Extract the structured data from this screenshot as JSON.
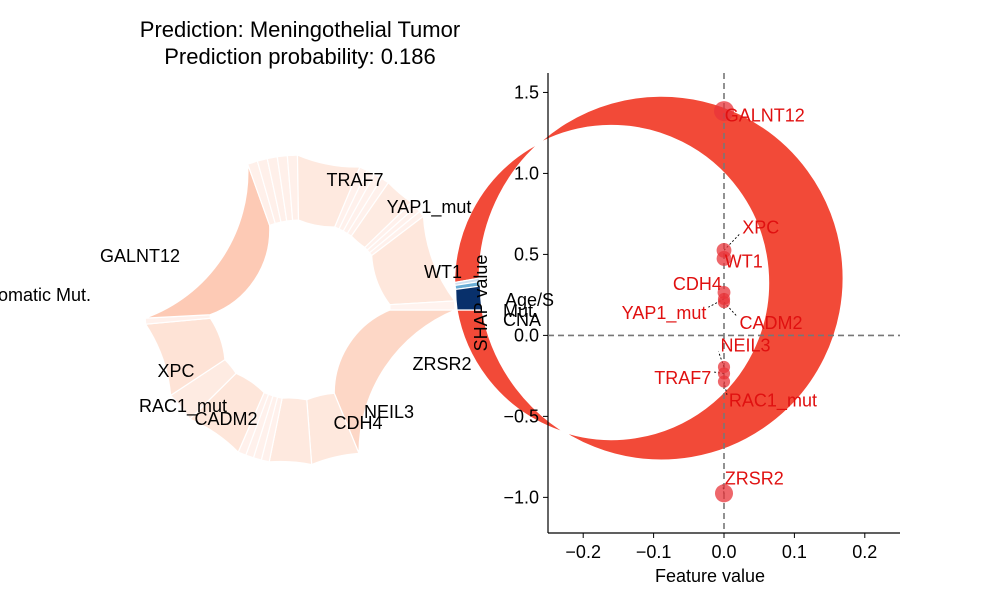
{
  "chart_data": [
    {
      "type": "donut",
      "title_lines": [
        "Prediction: Meningothelial Tumor",
        "Prediction probability: 0.186"
      ],
      "outer_ring": [
        {
          "name": "Somatic Mut.",
          "value": 0.972,
          "color": "#f24a38"
        },
        {
          "name": "Age/Sex",
          "value": 0.003,
          "color": "#cfdff0"
        },
        {
          "name": "Mut. Burden",
          "value": 0.004,
          "color": "#6baed6"
        },
        {
          "name": "CNA",
          "value": 0.021,
          "color": "#08306b"
        }
      ],
      "outer_labels": [
        {
          "text": "omatic Mut."
        },
        {
          "text": "Age/S"
        },
        {
          "text": "Mut."
        },
        {
          "text": "CNA"
        }
      ],
      "inner_ring": [
        {
          "name": "ZRSR2",
          "value": 0.18,
          "color": "#fdd7c6",
          "label": "ZRSR2"
        },
        {
          "name": "NEIL3",
          "value": 0.048,
          "color": "#fee8dd",
          "label": "NEIL3"
        },
        {
          "name": "CDH4",
          "value": 0.042,
          "color": "#fee9df",
          "label": "CDH4"
        },
        {
          "name": "s_a1",
          "value": 0.008,
          "color": "#fff1ec",
          "label": ""
        },
        {
          "name": "s_a2",
          "value": 0.008,
          "color": "#fff1ec",
          "label": ""
        },
        {
          "name": "s_a3",
          "value": 0.008,
          "color": "#fff1ec",
          "label": ""
        },
        {
          "name": "s_a4",
          "value": 0.008,
          "color": "#fff1ec",
          "label": ""
        },
        {
          "name": "CADM2",
          "value": 0.058,
          "color": "#fee6da",
          "label": "CADM2"
        },
        {
          "name": "RAC1_mut",
          "value": 0.03,
          "color": "#feebe2",
          "label": "RAC1_mut"
        },
        {
          "name": "XPC",
          "value": 0.075,
          "color": "#fee3d6",
          "label": "XPC"
        },
        {
          "name": "s_b1",
          "value": 0.006,
          "color": "#fff1ec",
          "label": ""
        },
        {
          "name": "GALNT12",
          "value": 0.195,
          "color": "#fdcab5",
          "label": "GALNT12"
        },
        {
          "name": "s_c1",
          "value": 0.01,
          "color": "#fff0ea",
          "label": ""
        },
        {
          "name": "s_c2",
          "value": 0.01,
          "color": "#fff0ea",
          "label": ""
        },
        {
          "name": "s_c3",
          "value": 0.01,
          "color": "#fff0ea",
          "label": ""
        },
        {
          "name": "s_c4",
          "value": 0.01,
          "color": "#fff0ea",
          "label": ""
        },
        {
          "name": "s_c5",
          "value": 0.01,
          "color": "#fff0ea",
          "label": ""
        },
        {
          "name": "TRAF7",
          "value": 0.063,
          "color": "#fee9df",
          "label": "TRAF7"
        },
        {
          "name": "s_d1",
          "value": 0.008,
          "color": "#fff1ec",
          "label": ""
        },
        {
          "name": "s_d2",
          "value": 0.008,
          "color": "#fff1ec",
          "label": ""
        },
        {
          "name": "s_d3",
          "value": 0.008,
          "color": "#fff1ec",
          "label": ""
        },
        {
          "name": "s_d4",
          "value": 0.008,
          "color": "#fff1ec",
          "label": ""
        },
        {
          "name": "YAP1_mut",
          "value": 0.03,
          "color": "#feebe2",
          "label": "YAP1_mut"
        },
        {
          "name": "s_e1",
          "value": 0.006,
          "color": "#fff1ec",
          "label": ""
        },
        {
          "name": "s_e2",
          "value": 0.006,
          "color": "#fff1ec",
          "label": ""
        },
        {
          "name": "s_e3",
          "value": 0.006,
          "color": "#fff1ec",
          "label": ""
        },
        {
          "name": "WT1",
          "value": 0.09,
          "color": "#fee7dc",
          "label": "WT1"
        },
        {
          "name": "s_f1",
          "value": 0.009,
          "color": "#fff3ef",
          "label": ""
        }
      ]
    },
    {
      "type": "scatter",
      "xlabel": "Feature value",
      "ylabel": "SHAP value",
      "xlim": [
        -0.25,
        0.25
      ],
      "ylim": [
        -1.22,
        1.62
      ],
      "xticks": [
        "−0.2",
        "−0.1",
        "0.0",
        "0.1",
        "0.2"
      ],
      "xtick_values": [
        -0.2,
        -0.1,
        0.0,
        0.1,
        0.2
      ],
      "yticks": [
        "1.5",
        "1.0",
        "0.5",
        "0.0",
        "−0.5",
        "−1.0"
      ],
      "ytick_values": [
        1.5,
        1.0,
        0.5,
        0.0,
        -0.5,
        -1.0
      ],
      "point_color": "#e8343a",
      "label_color": "#e01010",
      "points": [
        {
          "label": "GALNT12",
          "x": 0.0,
          "y": 1.385,
          "size": 1.0,
          "label_x": 0.001,
          "label_y": 1.32,
          "anchor": "start"
        },
        {
          "label": "XPC",
          "x": 0.0,
          "y": 0.525,
          "size": 0.6,
          "label_x": 0.026,
          "label_y": 0.63,
          "anchor": "start"
        },
        {
          "label": "WT1",
          "x": 0.0,
          "y": 0.475,
          "size": 0.6,
          "label_x": 0.001,
          "label_y": 0.42,
          "anchor": "start"
        },
        {
          "label": "CDH4",
          "x": 0.0,
          "y": 0.265,
          "size": 0.45,
          "label_x": -0.003,
          "label_y": 0.28,
          "anchor": "end"
        },
        {
          "label": "YAP1_mut",
          "x": 0.0,
          "y": 0.225,
          "size": 0.4,
          "label_x": -0.025,
          "label_y": 0.1,
          "anchor": "end"
        },
        {
          "label": "CADM2",
          "x": 0.0,
          "y": 0.205,
          "size": 0.4,
          "label_x": 0.022,
          "label_y": 0.04,
          "anchor": "start"
        },
        {
          "label": "NEIL3",
          "x": 0.0,
          "y": -0.195,
          "size": 0.4,
          "label_x": -0.005,
          "label_y": -0.1,
          "anchor": "start"
        },
        {
          "label": "TRAF7",
          "x": 0.0,
          "y": -0.235,
          "size": 0.4,
          "label_x": -0.018,
          "label_y": -0.3,
          "anchor": "end"
        },
        {
          "label": "RAC1_mut",
          "x": 0.0,
          "y": -0.285,
          "size": 0.4,
          "label_x": 0.007,
          "label_y": -0.44,
          "anchor": "start"
        },
        {
          "label": "ZRSR2",
          "x": 0.0,
          "y": -0.975,
          "size": 0.85,
          "label_x": 0.001,
          "label_y": -0.92,
          "anchor": "start"
        }
      ]
    }
  ]
}
